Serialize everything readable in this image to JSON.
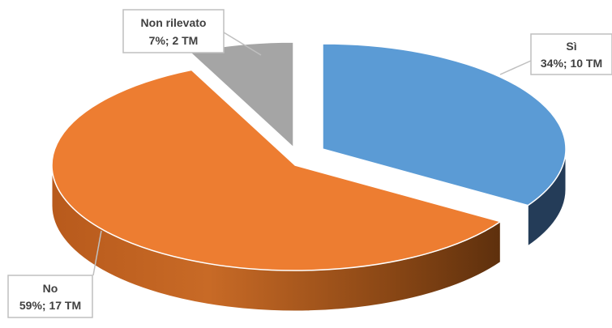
{
  "chart_data": {
    "type": "pie",
    "style": "3d-exploded",
    "title": "",
    "legend": "none",
    "slices": [
      {
        "label": "Sì",
        "percent": 34,
        "count": 10,
        "unit": "TM",
        "data_label": "34%; 10 TM",
        "color": "#5B9BD5"
      },
      {
        "label": "No",
        "percent": 59,
        "count": 17,
        "unit": "TM",
        "data_label": "59%; 17 TM",
        "color": "#ED7D31"
      },
      {
        "label": "Non rilevato",
        "percent": 7,
        "count": 2,
        "unit": "TM",
        "data_label": "7%; 2 TM",
        "color": "#A5A5A5"
      }
    ]
  }
}
